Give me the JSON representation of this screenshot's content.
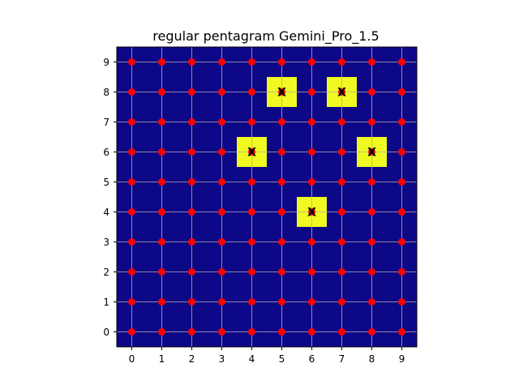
{
  "chart_data": {
    "type": "scatter",
    "title": "regular pentagram Gemini_Pro_1.5",
    "xlabel": "",
    "ylabel": "",
    "xlim": [
      -0.5,
      9.5
    ],
    "ylim": [
      -0.5,
      9.5
    ],
    "x_ticks": [
      0,
      1,
      2,
      3,
      4,
      5,
      6,
      7,
      8,
      9
    ],
    "y_ticks": [
      0,
      1,
      2,
      3,
      4,
      5,
      6,
      7,
      8,
      9
    ],
    "grid": true,
    "grid_points": {
      "x": [
        0,
        1,
        2,
        3,
        4,
        5,
        6,
        7,
        8,
        9
      ],
      "y": [
        0,
        1,
        2,
        3,
        4,
        5,
        6,
        7,
        8,
        9
      ]
    },
    "marked_cells": [
      {
        "x": 5,
        "y": 8,
        "label": "X"
      },
      {
        "x": 7,
        "y": 8,
        "label": "X"
      },
      {
        "x": 4,
        "y": 6,
        "label": "X"
      },
      {
        "x": 8,
        "y": 6,
        "label": "X"
      },
      {
        "x": 6,
        "y": 4,
        "label": "X"
      }
    ]
  },
  "colors": {
    "background": "#0d0887",
    "marked_cell": "#f0f921",
    "point": "#ff0000",
    "grid": "#b0b0b0",
    "mark_text": "#000000"
  }
}
